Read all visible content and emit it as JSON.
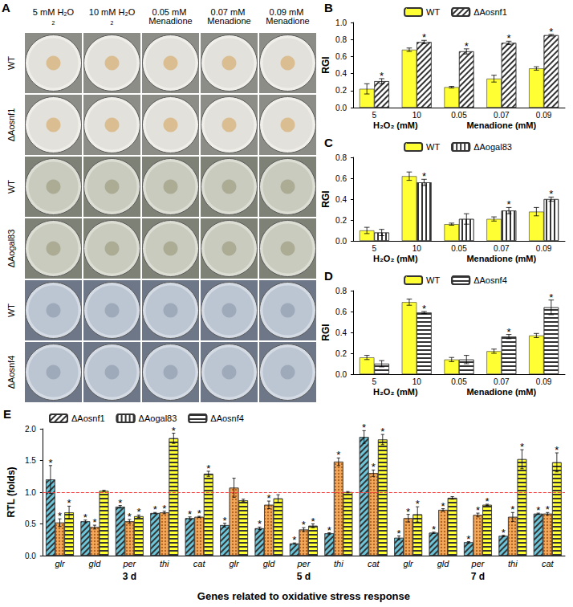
{
  "plates": {
    "panel": "A",
    "columns": [
      "5 mM H₂O₂",
      "10 mM H₂O₂",
      "0.05 mM Menadione",
      "0.07 mM Menadione",
      "0.09 mM Menadione"
    ],
    "rows": [
      "WT",
      "ΔAosnf1",
      "WT",
      "ΔAogal83",
      "WT",
      "ΔAosnf4"
    ]
  },
  "chart_data": [
    {
      "panel": "B",
      "type": "bar",
      "y_label": "RGI",
      "categories": [
        "5",
        "10",
        "0.05",
        "0.07",
        "0.09"
      ],
      "groups": [
        {
          "label": "H₂O₂ (mM)",
          "size": 2
        },
        {
          "label": "Menadione (mM)",
          "size": 3
        }
      ],
      "ylim": [
        0,
        1
      ],
      "yticks": [
        {
          "value": 0,
          "label": "0.0"
        },
        {
          "value": 0.2,
          "label": "0.2"
        },
        {
          "value": 0.4,
          "label": "0.4"
        },
        {
          "value": 0.6,
          "label": "0.6"
        },
        {
          "value": 0.8,
          "label": "0.8"
        },
        {
          "value": 1,
          "label": "1.0"
        }
      ],
      "grid": false,
      "legend": "top",
      "significance_mark": "*",
      "series": [
        {
          "name": "WT",
          "color": "#ffff33",
          "values": [
            0.22,
            0.68,
            0.24,
            0.34,
            0.46
          ],
          "errors": [
            0.06,
            0.02,
            0.01,
            0.04,
            0.02
          ],
          "significant": [
            false,
            false,
            false,
            false,
            false
          ]
        },
        {
          "name": "ΔAosnf1",
          "color": "#ffffff",
          "values": [
            0.31,
            0.77,
            0.66,
            0.76,
            0.85
          ],
          "errors": [
            0.03,
            0.02,
            0.03,
            0.02,
            0.01
          ],
          "significant": [
            true,
            true,
            true,
            true,
            true
          ]
        }
      ]
    },
    {
      "panel": "C",
      "type": "bar",
      "y_label": "RGI",
      "categories": [
        "5",
        "10",
        "0.05",
        "0.07",
        "0.09"
      ],
      "groups": [
        {
          "label": "H₂O₂ (mM)",
          "size": 2
        },
        {
          "label": "Menadione (mM)",
          "size": 3
        }
      ],
      "ylim": [
        0,
        0.8
      ],
      "yticks": [
        {
          "value": 0,
          "label": "0.0"
        },
        {
          "value": 0.2,
          "label": "0.2"
        },
        {
          "value": 0.4,
          "label": "0.4"
        },
        {
          "value": 0.6,
          "label": "0.6"
        },
        {
          "value": 0.8,
          "label": "0.8"
        }
      ],
      "grid": false,
      "legend": "top",
      "significance_mark": "*",
      "series": [
        {
          "name": "WT",
          "color": "#ffff33",
          "values": [
            0.1,
            0.62,
            0.16,
            0.21,
            0.28
          ],
          "errors": [
            0.03,
            0.04,
            0.01,
            0.02,
            0.04
          ],
          "significant": [
            false,
            false,
            false,
            false,
            false
          ]
        },
        {
          "name": "ΔAogal83",
          "color": "#ffffff",
          "values": [
            0.08,
            0.56,
            0.21,
            0.29,
            0.4
          ],
          "errors": [
            0.03,
            0.03,
            0.05,
            0.03,
            0.02
          ],
          "significant": [
            false,
            true,
            false,
            true,
            true
          ]
        }
      ]
    },
    {
      "panel": "D",
      "type": "bar",
      "y_label": "RGI",
      "categories": [
        "5",
        "10",
        "0.05",
        "0.07",
        "0.09"
      ],
      "groups": [
        {
          "label": "H₂O₂ (mM)",
          "size": 2
        },
        {
          "label": "Menadione (mM)",
          "size": 3
        }
      ],
      "ylim": [
        0,
        0.8
      ],
      "yticks": [
        {
          "value": 0,
          "label": "0.0"
        },
        {
          "value": 0.2,
          "label": "0.2"
        },
        {
          "value": 0.4,
          "label": "0.4"
        },
        {
          "value": 0.6,
          "label": "0.6"
        },
        {
          "value": 0.8,
          "label": "0.8"
        }
      ],
      "grid": false,
      "legend": "top",
      "significance_mark": "*",
      "series": [
        {
          "name": "WT",
          "color": "#ffff33",
          "values": [
            0.16,
            0.69,
            0.14,
            0.22,
            0.37
          ],
          "errors": [
            0.02,
            0.03,
            0.02,
            0.02,
            0.02
          ],
          "significant": [
            false,
            false,
            false,
            false,
            false
          ]
        },
        {
          "name": "ΔAosnf4",
          "color": "#ffffff",
          "values": [
            0.1,
            0.59,
            0.14,
            0.36,
            0.64
          ],
          "errors": [
            0.03,
            0.01,
            0.04,
            0.02,
            0.07
          ],
          "significant": [
            false,
            true,
            false,
            true,
            true
          ]
        }
      ]
    },
    {
      "panel": "E",
      "type": "bar",
      "y_label": "RTL (folds)",
      "x_label": "Genes related to oxidative stress response",
      "categories": [
        "glr",
        "gld",
        "per",
        "thi",
        "cat",
        "glr",
        "gld",
        "per",
        "thi",
        "cat",
        "glr",
        "gld",
        "per",
        "thi",
        "cat"
      ],
      "groups": [
        {
          "label": "3 d",
          "size": 5
        },
        {
          "label": "5 d",
          "size": 5
        },
        {
          "label": "7 d",
          "size": 5
        }
      ],
      "ylim": [
        0,
        2
      ],
      "yticks": [
        {
          "value": 0,
          "label": "0.0"
        },
        {
          "value": 0.5,
          "label": "0.5"
        },
        {
          "value": 1,
          "label": "1.0"
        },
        {
          "value": 1.5,
          "label": "1.5"
        },
        {
          "value": 2,
          "label": "2.0"
        }
      ],
      "grid": false,
      "legend": "top-left",
      "significance_mark": "*",
      "reference_line": {
        "value": 1,
        "color": "#ff3b3b",
        "line_style": "dashed"
      },
      "series": [
        {
          "name": "ΔAosnf1",
          "color": "#6cc5d8",
          "values": [
            1.2,
            0.54,
            0.77,
            0.67,
            0.59,
            0.48,
            0.43,
            0.19,
            0.35,
            1.87,
            0.28,
            0.36,
            0.21,
            0.31,
            0.66
          ],
          "errors": [
            0.22,
            0.02,
            0.02,
            0.01,
            0.02,
            0.03,
            0.02,
            0.01,
            0.01,
            0.1,
            0.03,
            0.01,
            0.01,
            0.01,
            0.01
          ],
          "significant": [
            true,
            true,
            true,
            true,
            true,
            true,
            true,
            true,
            true,
            true,
            true,
            true,
            true,
            true,
            true
          ]
        },
        {
          "name": "ΔAogal83",
          "color": "#f4a95a",
          "values": [
            0.52,
            0.45,
            0.54,
            0.68,
            0.61,
            1.07,
            0.8,
            0.41,
            1.48,
            1.3,
            0.59,
            0.72,
            0.64,
            0.61,
            0.66
          ],
          "errors": [
            0.06,
            0.03,
            0.03,
            0.02,
            0.01,
            0.15,
            0.06,
            0.03,
            0.06,
            0.05,
            0.06,
            0.02,
            0.03,
            0.07,
            0.02
          ],
          "significant": [
            true,
            true,
            true,
            true,
            true,
            false,
            true,
            true,
            true,
            true,
            true,
            true,
            true,
            true,
            true
          ]
        },
        {
          "name": "ΔAosnf4",
          "color": "#ffff33",
          "values": [
            0.68,
            1.02,
            0.62,
            1.85,
            1.29,
            0.87,
            0.9,
            0.47,
            1.0,
            1.83,
            0.65,
            0.91,
            0.8,
            1.52,
            1.47
          ],
          "errors": [
            0.1,
            0.01,
            0.02,
            0.08,
            0.04,
            0.02,
            0.06,
            0.03,
            0.01,
            0.08,
            0.12,
            0.02,
            0.01,
            0.15,
            0.15
          ],
          "significant": [
            true,
            false,
            true,
            true,
            true,
            false,
            false,
            true,
            false,
            true,
            true,
            false,
            true,
            true,
            true
          ]
        }
      ]
    }
  ]
}
